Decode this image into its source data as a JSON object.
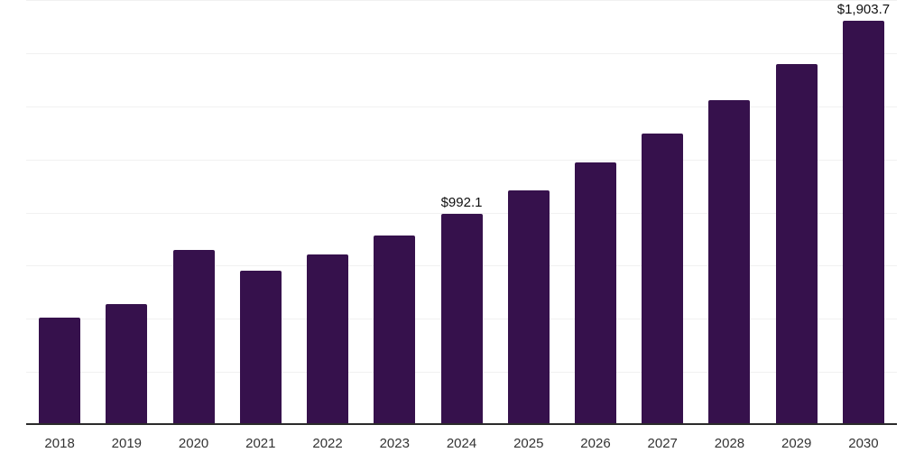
{
  "chart_data": {
    "type": "bar",
    "title": "",
    "xlabel": "",
    "ylabel": "",
    "categories": [
      "2018",
      "2019",
      "2020",
      "2021",
      "2022",
      "2023",
      "2024",
      "2025",
      "2026",
      "2027",
      "2028",
      "2029",
      "2030"
    ],
    "values": [
      507,
      570,
      825,
      726,
      804,
      892,
      992.1,
      1104,
      1236,
      1370,
      1529,
      1700,
      1903.7
    ],
    "bar_labels": [
      "",
      "",
      "",
      "",
      "",
      "",
      "$992.1",
      "",
      "",
      "",
      "",
      "",
      "$1,903.7"
    ],
    "ylim": [
      0,
      2000
    ],
    "gridline_step": 250,
    "grid": true,
    "legend_position": "none",
    "colors": {
      "background": "#FFFFFF",
      "bar": "#36114C",
      "axis": "#2B2B2B",
      "gridline": "#F1F1F1",
      "value_label": "#0F0F0F",
      "tick_label": "#333333"
    }
  }
}
